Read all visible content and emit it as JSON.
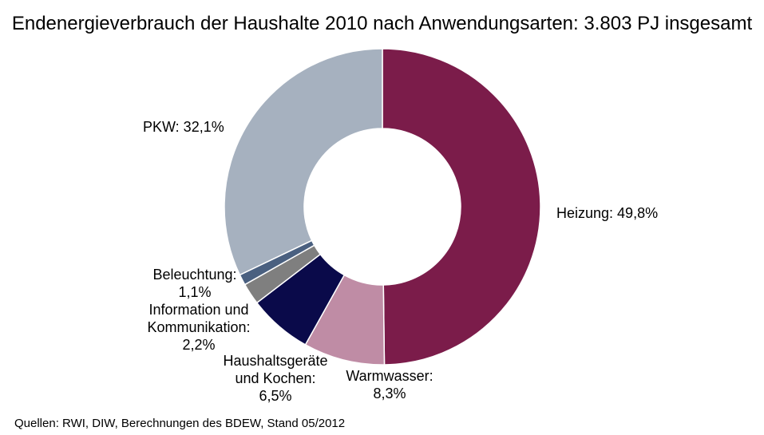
{
  "chart_data": {
    "type": "pie",
    "variant": "donut",
    "title": "Endenergieverbrauch der Haushalte 2010 nach Anwendungsarten: 3.803 PJ insgesamt",
    "slices": [
      {
        "key": "heizung",
        "label_lines": [
          "Heizung: 49,8%"
        ],
        "value": 49.8,
        "color": "#7B1C4A"
      },
      {
        "key": "warmwasser",
        "label_lines": [
          "Warmwasser:",
          "8,3%"
        ],
        "value": 8.3,
        "color": "#BF8CA5"
      },
      {
        "key": "haushaltsgeraete",
        "label_lines": [
          "Haushaltsgeräte",
          "und Kochen:",
          "6,5%"
        ],
        "value": 6.5,
        "color": "#0A0A4A"
      },
      {
        "key": "ikt",
        "label_lines": [
          "Information und",
          "Kommunikation:",
          "2,2%"
        ],
        "value": 2.2,
        "color": "#7F7F7F"
      },
      {
        "key": "beleuchtung",
        "label_lines": [
          "Beleuchtung:",
          "1,1%"
        ],
        "value": 1.1,
        "color": "#4A6080"
      },
      {
        "key": "pkw",
        "label_lines": [
          "PKW: 32,1%"
        ],
        "value": 32.1,
        "color": "#A6B1BF"
      }
    ]
  },
  "footer": {
    "source": "Quellen: RWI, DIW, Berechnungen des BDEW, Stand 05/2012"
  }
}
